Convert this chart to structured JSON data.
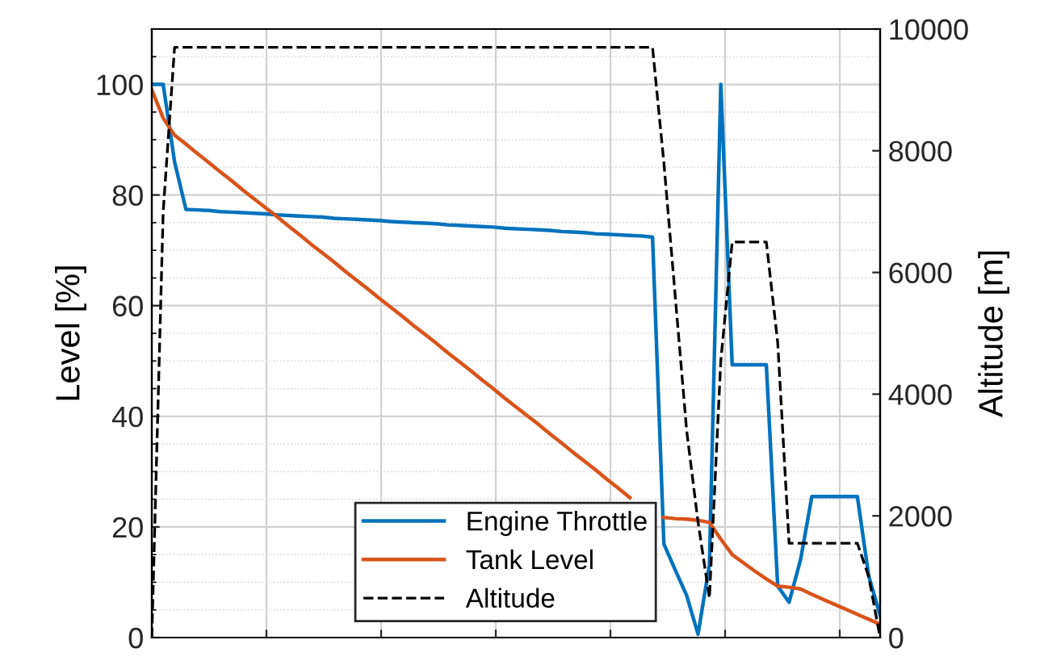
{
  "chart_data": {
    "type": "line",
    "ylabel": "Level [%]",
    "y2label": "Altitude [m]",
    "categories": [
      null,
      null,
      null,
      null,
      null,
      null,
      null,
      null,
      null,
      null,
      null,
      null,
      null,
      null,
      null,
      null,
      null,
      null,
      null,
      null,
      null,
      null,
      null,
      null,
      null,
      null,
      null,
      null,
      null,
      null,
      null,
      null,
      null,
      null,
      null,
      null,
      null,
      null,
      null,
      null,
      null,
      null,
      null,
      null,
      null,
      null,
      null,
      null,
      null,
      null,
      null,
      null,
      null,
      null,
      null,
      null,
      null,
      null,
      null,
      null,
      null,
      null,
      null,
      null,
      null
    ],
    "ylim": [
      0,
      110
    ],
    "yticks": [
      0,
      20,
      40,
      60,
      80,
      100
    ],
    "y2lim": [
      0,
      10000
    ],
    "y2ticks": [
      0,
      2000,
      4000,
      6000,
      8000,
      10000
    ],
    "grid": true,
    "legend": "bottom",
    "tick_labels": "y",
    "series": [
      {
        "name": "Engine Throttle",
        "color": "#0072bd",
        "line_style": "solid",
        "values": [
          100,
          100,
          86,
          77.4,
          77.3,
          77.2,
          77.0,
          76.9,
          76.8,
          76.7,
          76.6,
          76.4,
          76.3,
          76.2,
          76.1,
          76.0,
          75.8,
          75.7,
          75.6,
          75.5,
          75.4,
          75.2,
          75.1,
          75.0,
          74.9,
          74.8,
          74.6,
          74.5,
          74.4,
          74.3,
          74.2,
          74.0,
          73.9,
          73.8,
          73.7,
          73.6,
          73.4,
          73.3,
          73.2,
          73.0,
          72.9,
          72.8,
          72.7,
          72.6,
          72.4,
          16.9,
          12.2,
          7.6,
          0.6,
          13.2,
          100,
          49.3,
          49.3,
          49.3,
          49.3,
          9.3,
          6.4,
          14,
          25.5,
          25.5,
          25.5,
          25.5,
          25.5,
          11.1,
          4
        ]
      },
      {
        "name": "Tank Level",
        "color": "#d95319",
        "line_style": "solid",
        "values": [
          99,
          93.9,
          90.8,
          89.2,
          87.5,
          85.9,
          84.2,
          82.6,
          80.9,
          79.3,
          77.7,
          76.1,
          74.4,
          72.8,
          71.1,
          69.5,
          67.9,
          66.2,
          64.6,
          63.0,
          61.3,
          59.7,
          58.1,
          56.4,
          54.8,
          53.2,
          51.5,
          49.9,
          48.3,
          46.6,
          45.0,
          43.3,
          41.7,
          40.1,
          38.5,
          36.8,
          35.2,
          33.5,
          31.9,
          30.3,
          28.6,
          27.0,
          25.3,
          null,
          null,
          21.7,
          21.5,
          21.4,
          21.2,
          20.8,
          17.8,
          15.0,
          13.5,
          12.0,
          10.6,
          9.3,
          9.1,
          8.8,
          7.8,
          6.9,
          6.0,
          5.1,
          4.2,
          3.3,
          2.4
        ]
      },
      {
        "name": "Altitude",
        "color": "#000000",
        "line_style": "dashed",
        "axis": "y2",
        "values": [
          0,
          7000,
          9700,
          9700,
          9700,
          9700,
          9700,
          9700,
          9700,
          9700,
          9700,
          9700,
          9700,
          9700,
          9700,
          9700,
          9700,
          9700,
          9700,
          9700,
          9700,
          9700,
          9700,
          9700,
          9700,
          9700,
          9700,
          9700,
          9700,
          9700,
          9700,
          9700,
          9700,
          9700,
          9700,
          9700,
          9700,
          9700,
          9700,
          9700,
          9700,
          9700,
          9700,
          9700,
          9700,
          7800,
          5600,
          3400,
          1900,
          650,
          4550,
          6500,
          6500,
          6500,
          6500,
          4850,
          1550,
          1550,
          1550,
          1550,
          1550,
          1550,
          1550,
          1000,
          0
        ]
      }
    ]
  }
}
